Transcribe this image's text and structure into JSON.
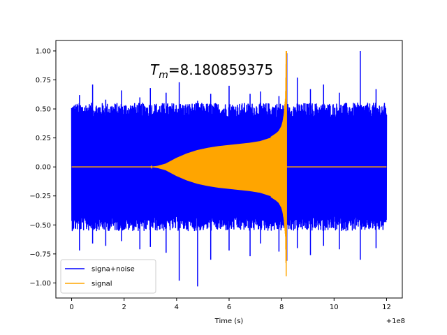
{
  "chart_data": {
    "type": "line",
    "title": "",
    "xlabel": "Time (s)",
    "ylabel": "",
    "x_offset_label": "+1e8",
    "xlim": [
      -0.6,
      12.6
    ],
    "ylim": [
      -1.13,
      1.09
    ],
    "xticks": [
      0,
      2,
      4,
      6,
      8,
      10,
      12
    ],
    "xtick_labels": [
      "0",
      "2",
      "4",
      "6",
      "8",
      "10",
      "12"
    ],
    "yticks": [
      -1.0,
      -0.75,
      -0.5,
      -0.25,
      0.0,
      0.25,
      0.5,
      0.75,
      1.0
    ],
    "ytick_labels": [
      "−1.00",
      "−0.75",
      "−0.50",
      "−0.25",
      "0.00",
      "0.25",
      "0.50",
      "0.75",
      "1.00"
    ],
    "grid": false,
    "legend_position": "lower-left",
    "annotation": {
      "symbol": "T",
      "subscript": "m",
      "text": "=8.180859375"
    },
    "series": [
      {
        "name": "signa+noise",
        "color": "#0000ff",
        "x_range": [
          0,
          12
        ],
        "typical_amplitude": 0.5,
        "peak_max": 1.0,
        "peak_min": -1.03,
        "x": [
          0.3,
          0.8,
          1.3,
          1.9,
          2.6,
          3.0,
          3.6,
          4.1,
          4.8,
          5.3,
          6.0,
          6.8,
          7.2,
          7.9,
          8.2,
          8.6,
          9.1,
          9.6,
          10.2,
          11.0,
          11.6
        ],
        "y_max": [
          0.62,
          0.71,
          0.58,
          0.66,
          0.6,
          0.68,
          0.64,
          0.73,
          0.57,
          0.63,
          0.7,
          0.63,
          0.65,
          0.61,
          0.98,
          0.77,
          0.67,
          0.71,
          0.64,
          1.0,
          0.67
        ],
        "y_min": [
          -0.72,
          -0.66,
          -0.68,
          -0.64,
          -0.71,
          -0.69,
          -0.74,
          -0.98,
          -1.03,
          -0.8,
          -0.72,
          -0.77,
          -0.66,
          -0.73,
          -0.81,
          -0.7,
          -0.76,
          -0.68,
          -0.71,
          -0.8,
          -0.7
        ]
      },
      {
        "name": "signal",
        "color": "#ffa500",
        "x": [
          0,
          3.0,
          3.3,
          3.6,
          4.0,
          4.4,
          4.8,
          5.2,
          5.6,
          6.0,
          6.4,
          6.8,
          7.2,
          7.6,
          7.8,
          7.9,
          8.0,
          8.05,
          8.1,
          8.15,
          8.18,
          8.2,
          12.0
        ],
        "envelope": [
          0,
          0,
          0.01,
          0.03,
          0.08,
          0.12,
          0.15,
          0.17,
          0.185,
          0.195,
          0.205,
          0.215,
          0.23,
          0.26,
          0.29,
          0.31,
          0.35,
          0.39,
          0.46,
          0.6,
          1.0,
          0,
          0
        ]
      }
    ]
  }
}
